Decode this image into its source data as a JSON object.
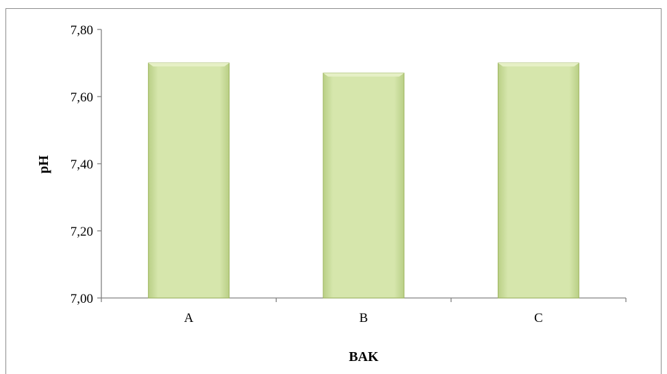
{
  "chart_data": {
    "type": "bar",
    "categories": [
      "A",
      "B",
      "C"
    ],
    "values": [
      7.7,
      7.67,
      7.7
    ],
    "title": "",
    "xlabel": "BAK",
    "ylabel": "pH",
    "ylim": [
      7.0,
      7.8
    ],
    "yticks": [
      "7,00",
      "7,20",
      "7,40",
      "7,60",
      "7,80"
    ],
    "ytick_values": [
      7.0,
      7.2,
      7.4,
      7.6,
      7.8
    ],
    "bar_color": "#d3e3a6",
    "bar_edge_color": "#9bb35a",
    "grid": false,
    "legend": "none"
  }
}
